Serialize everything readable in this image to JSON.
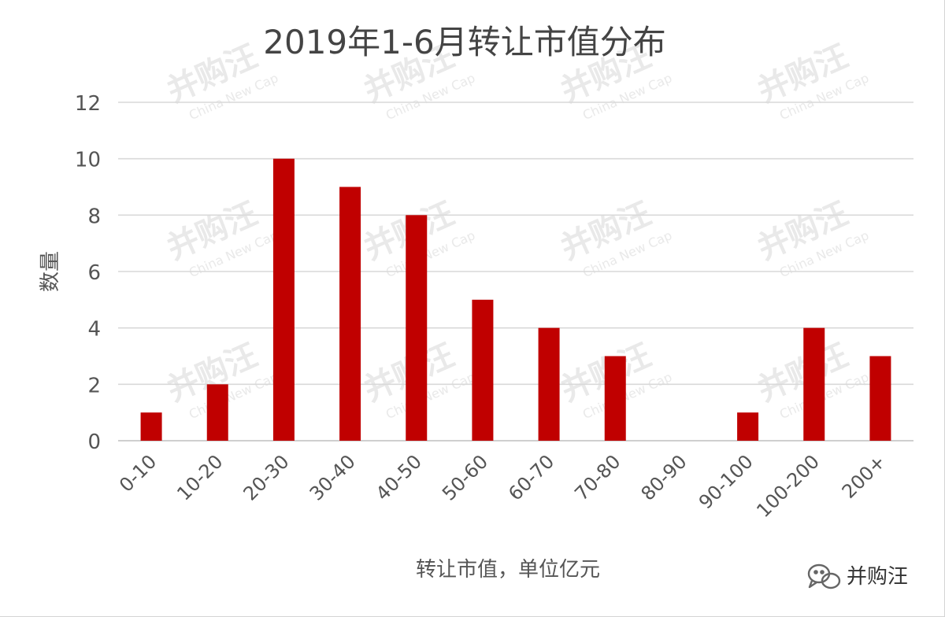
{
  "chart_data": {
    "type": "bar",
    "title": "2019年1-6月转让市值分布",
    "xlabel": "转让市值，单位亿元",
    "ylabel": "数量",
    "categories": [
      "0-10",
      "10-20",
      "20-30",
      "30-40",
      "40-50",
      "50-60",
      "60-70",
      "70-80",
      "80-90",
      "90-100",
      "100-200",
      "200+"
    ],
    "values": [
      1,
      2,
      10,
      9,
      8,
      5,
      4,
      3,
      0,
      1,
      4,
      3
    ],
    "ylim": [
      0,
      12
    ],
    "yticks": [
      0,
      2,
      4,
      6,
      8,
      10,
      12
    ],
    "grid": true,
    "legend": "none",
    "bar_color": "#c00000"
  },
  "watermark": {
    "text": "并购汪",
    "subtext": "China New Cap",
    "color": "#e9e9e9"
  },
  "brand": {
    "label": "并购汪",
    "icon": "wechat-icon"
  }
}
